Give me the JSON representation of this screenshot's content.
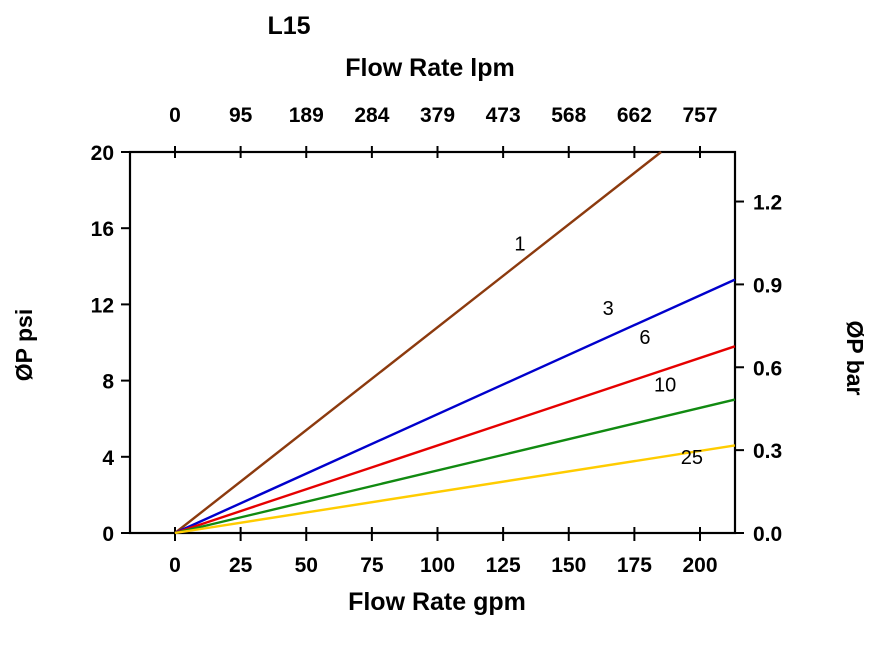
{
  "chart_data": {
    "type": "line",
    "title": "L15",
    "top_axis": {
      "label": "Flow Rate lpm",
      "tick_labels": [
        "0",
        "95",
        "189",
        "284",
        "379",
        "473",
        "568",
        "662",
        "757"
      ]
    },
    "bottom_axis": {
      "label": "Flow Rate gpm",
      "ticks": [
        0,
        25,
        50,
        75,
        100,
        125,
        150,
        175,
        200
      ],
      "range": [
        0,
        200
      ]
    },
    "left_axis": {
      "label": "ØP psi",
      "ticks": [
        0,
        4,
        8,
        12,
        16,
        20
      ],
      "range": [
        0,
        20
      ]
    },
    "right_axis": {
      "label": "ØP bar",
      "ticks": [
        "0.0",
        "0.3",
        "0.6",
        "0.9",
        "1.2"
      ],
      "psi_per_bar": 14.5
    },
    "series": [
      {
        "name": "1",
        "color": "#8C3A0E",
        "points": [
          [
            0,
            0
          ],
          [
            185.2,
            20
          ]
        ],
        "label": {
          "text": "1",
          "x": 131.4,
          "y": 15.2
        }
      },
      {
        "name": "3",
        "color": "#0000CC",
        "points": [
          [
            0,
            0
          ],
          [
            213.3,
            13.3
          ]
        ],
        "label": {
          "text": "3",
          "x": 165.0,
          "y": 11.8
        }
      },
      {
        "name": "6",
        "color": "#E60000",
        "points": [
          [
            0,
            0
          ],
          [
            213.3,
            9.8
          ]
        ],
        "label": {
          "text": "6",
          "x": 179.0,
          "y": 10.3
        }
      },
      {
        "name": "10",
        "color": "#118A11",
        "points": [
          [
            0,
            0
          ],
          [
            213.3,
            7.0
          ]
        ],
        "label": {
          "text": "10",
          "x": 186.7,
          "y": 7.8
        }
      },
      {
        "name": "25",
        "color": "#FFCC00",
        "points": [
          [
            0,
            0
          ],
          [
            213.3,
            4.6
          ]
        ],
        "label": {
          "text": "25",
          "x": 196.9,
          "y": 4.0
        }
      }
    ]
  }
}
